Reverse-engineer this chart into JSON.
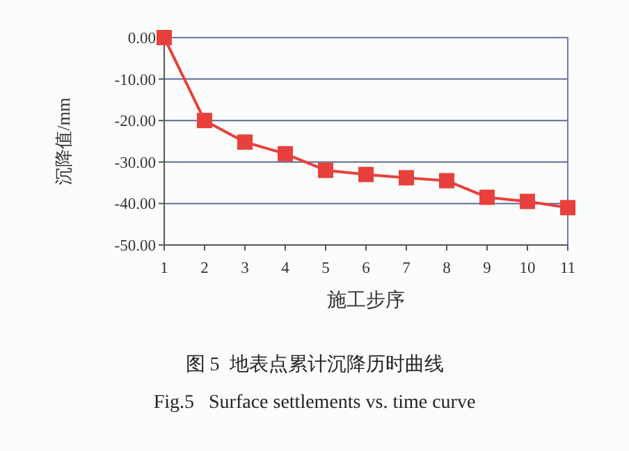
{
  "chart_data": {
    "type": "line",
    "ylabel": "沉降值/mm",
    "xlabel": "施工步序",
    "x": [
      1,
      2,
      3,
      4,
      5,
      6,
      7,
      8,
      9,
      10,
      11
    ],
    "series": [
      {
        "color": "#e8403c",
        "values": [
          0,
          -20,
          -25.2,
          -28,
          -32,
          -33,
          -33.8,
          -34.5,
          -38.5,
          -39.5,
          -41
        ]
      }
    ],
    "xlim": [
      1,
      11
    ],
    "xticks": [
      1,
      2,
      3,
      4,
      5,
      6,
      7,
      8,
      9,
      10,
      11
    ],
    "ylim": [
      -50,
      0
    ],
    "yticks": [
      {
        "value": 0,
        "label": "0.00"
      },
      {
        "value": -10,
        "label": "-10.00"
      },
      {
        "value": -20,
        "label": "-20.00"
      },
      {
        "value": -30,
        "label": "-30.00"
      },
      {
        "value": -40,
        "label": "-40.00"
      },
      {
        "value": -50,
        "label": "-50.00"
      }
    ],
    "grid": "y",
    "marker": "square",
    "line_style": "solid",
    "annotations": [
      "图 5  地表点累计沉降历时曲线",
      "Fig.5   Surface settlements vs. time curve"
    ]
  }
}
